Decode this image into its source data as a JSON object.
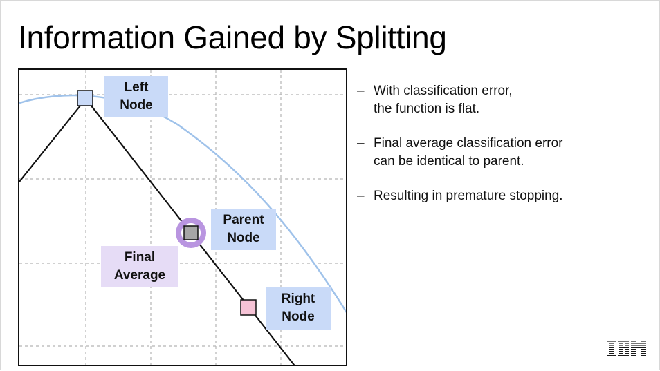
{
  "slide": {
    "title": "Information Gained by Splitting"
  },
  "diagram": {
    "labels": {
      "left_node": "Left\nNode",
      "parent_node": "Parent\nNode",
      "final_average": "Final\nAverage",
      "right_node": "Right\nNode"
    },
    "colors": {
      "entropy_curve": "#9fc2ea",
      "left_marker": "#c9daf8",
      "parent_marker": "#a6a6a6",
      "parent_ring": "#b995e0",
      "right_marker": "#f6c3d6",
      "blue_label": "#c9daf8",
      "purple_label": "#e6dcf6",
      "grid": "#b5b5b5"
    }
  },
  "bullets": [
    {
      "dash": "–",
      "line1": "With classification error,",
      "line2": "the function is flat."
    },
    {
      "dash": "–",
      "line1": "Final average classification error",
      "line2": "can be identical to parent."
    },
    {
      "dash": "–",
      "line1": "Resulting in premature stopping.",
      "line2": ""
    }
  ],
  "logo": {
    "name": "ibm-logo",
    "text": "IBM"
  }
}
